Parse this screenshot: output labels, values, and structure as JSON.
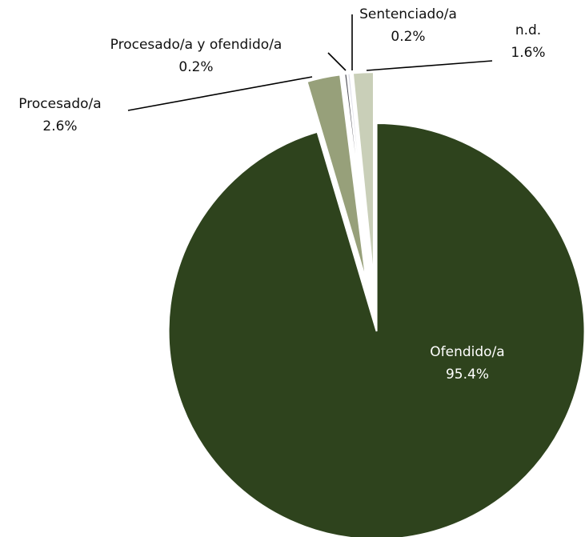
{
  "chart_data": {
    "type": "pie",
    "categories": [
      "Ofendido/a",
      "Procesado/a",
      "Procesado/a y ofendido/a",
      "Sentenciado/a",
      "n.d."
    ],
    "values": [
      95.4,
      2.6,
      0.2,
      0.2,
      1.6
    ],
    "value_labels": [
      "95.4%",
      "2.6%",
      "0.2%",
      "0.2%",
      "1.6%"
    ],
    "colors": [
      "#2e431d",
      "#97a07a",
      "#4d4d55",
      "#dcdce6",
      "#c9cfb8"
    ]
  }
}
